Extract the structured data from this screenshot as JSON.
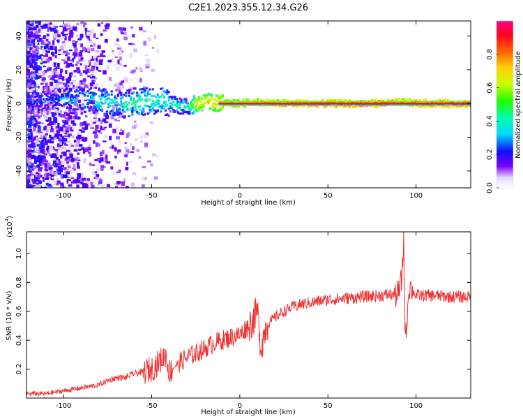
{
  "title": "C2E1.2023.355.12.34.G26",
  "spectrogram": {
    "xlabel": "Height of straight line (km)",
    "ylabel": "Frequency (Hz)",
    "xlim": [
      -121,
      131
    ],
    "ylim": [
      -50,
      49
    ],
    "xticks": [
      "-100",
      "-50",
      "0",
      "50",
      "100"
    ],
    "xtick_values": [
      -100,
      -50,
      0,
      50,
      100
    ],
    "yticks": [
      "-40",
      "-20",
      "0",
      "20",
      "40"
    ],
    "ytick_values": [
      -40,
      -20,
      0,
      20,
      40
    ]
  },
  "colorbar": {
    "label": "Normalized spectral amplitude",
    "ticks": [
      "0.0",
      "0.2",
      "0.4",
      "0.6",
      "0.8"
    ],
    "tick_values": [
      0.0,
      0.2,
      0.4,
      0.6,
      0.8
    ],
    "range": [
      0,
      1
    ]
  },
  "chart_data": [
    {
      "type": "heatmap",
      "xlabel": "Height of straight line (km)",
      "ylabel": "Frequency (Hz)",
      "xlim": [
        -121,
        131
      ],
      "ylim": [
        -50,
        49
      ],
      "colorbar_label": "Normalized spectral amplitude",
      "ridge": {
        "x": [
          -115,
          -100,
          -90,
          -80,
          -70,
          -60,
          -50,
          -45,
          -40,
          -30,
          -25,
          -20,
          -10,
          0,
          10,
          20,
          50,
          80,
          93,
          100,
          120,
          131
        ],
        "frequency": [
          1,
          3,
          3,
          2,
          0,
          0,
          2,
          2,
          0,
          -2,
          0,
          1,
          0,
          0,
          1,
          0,
          0,
          0,
          1,
          0,
          0,
          0
        ],
        "amplitude": [
          0.25,
          0.3,
          0.35,
          0.4,
          0.4,
          0.45,
          0.45,
          0.45,
          0.4,
          0.4,
          0.7,
          0.7,
          0.75,
          0.8,
          0.8,
          0.85,
          0.9,
          0.9,
          0.8,
          0.9,
          0.9,
          0.9
        ]
      }
    },
    {
      "type": "line",
      "xlabel": "Height of straight line (km)",
      "ylabel": "SNR (10 * v/v)",
      "y_multiplier": "(x10^4)",
      "xlim": [
        -121,
        131
      ],
      "ylim": [
        0,
        1.15
      ],
      "xticks": [
        -100,
        -50,
        0,
        50,
        100
      ],
      "yticks": [
        0.2,
        0.4,
        0.6,
        0.8,
        1.0
      ],
      "color": "#ee3333",
      "series": [
        {
          "x": [
            -121,
            -110,
            -100,
            -90,
            -80,
            -75,
            -70,
            -65,
            -60,
            -55,
            -50,
            -45,
            -42,
            -40,
            -35,
            -30,
            -25,
            -20,
            -15,
            -10,
            -5,
            0,
            5,
            8,
            10,
            12,
            15,
            20,
            25,
            30,
            35,
            40,
            50,
            60,
            70,
            80,
            90,
            92,
            93,
            94,
            96,
            100,
            110,
            120,
            131
          ],
          "y": [
            0.03,
            0.03,
            0.05,
            0.07,
            0.09,
            0.12,
            0.14,
            0.14,
            0.17,
            0.18,
            0.2,
            0.26,
            0.3,
            0.18,
            0.24,
            0.28,
            0.31,
            0.34,
            0.38,
            0.4,
            0.42,
            0.44,
            0.5,
            0.55,
            0.6,
            0.35,
            0.5,
            0.56,
            0.6,
            0.63,
            0.65,
            0.66,
            0.68,
            0.69,
            0.7,
            0.71,
            0.72,
            0.82,
            1.12,
            0.38,
            0.78,
            0.71,
            0.71,
            0.7,
            0.7
          ]
        }
      ]
    }
  ],
  "snr": {
    "xlabel": "Height of straight line (km)",
    "ylabel": "SNR (10 * v/v)",
    "multiplier_base": "(x10",
    "multiplier_exp": "4",
    "multiplier_close": ")",
    "xticks": [
      "-100",
      "-50",
      "0",
      "50",
      "100"
    ],
    "yticks": [
      "0.2",
      "0.4",
      "0.6",
      "0.8",
      "1.0"
    ]
  }
}
